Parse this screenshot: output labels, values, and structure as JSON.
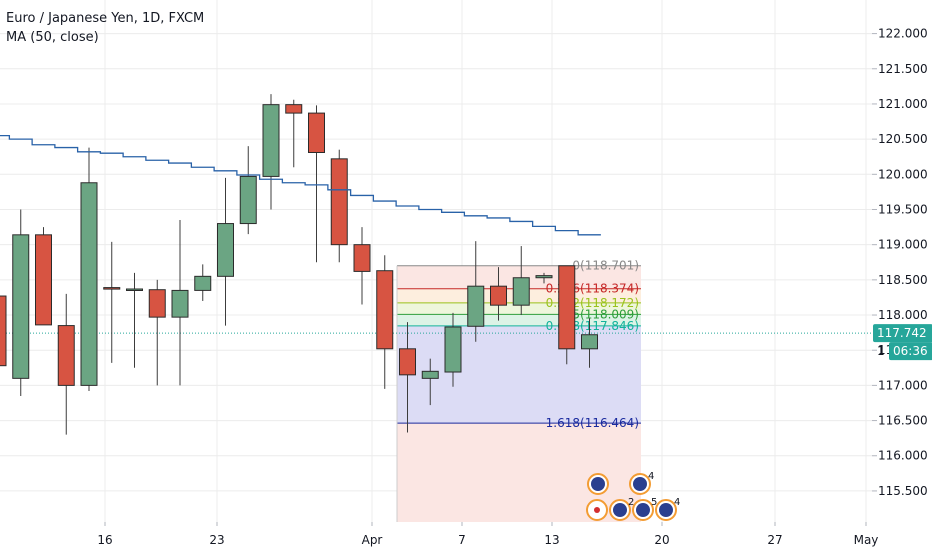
{
  "legend": {
    "title": "Euro / Japanese Yen, 1D, FXCM",
    "indicator": "MA (50, close)"
  },
  "price_badge": {
    "value": "117.742",
    "timer": "06:36",
    "timer_prefix": "1",
    "color": "#26a69a"
  },
  "colors": {
    "up": "#6ba583",
    "down": "#d75442",
    "ma": "#2962a8",
    "grid": "#ececec",
    "fib_upper_fill": "#fbe6e3",
    "fib_lower_fill": "#dcdcf5"
  },
  "chart_data": {
    "type": "candlestick",
    "title": "Euro / Japanese Yen, 1D, FXCM",
    "x_ticks": [
      "16",
      "23",
      "Apr",
      "7",
      "13",
      "20",
      "27",
      "May"
    ],
    "y_ticks": [
      "122.000",
      "121.500",
      "121.000",
      "120.500",
      "120.000",
      "119.500",
      "119.000",
      "118.500",
      "118.000",
      "117.500",
      "117.000",
      "116.500",
      "116.000",
      "115.500"
    ],
    "ylim": [
      115.3,
      122.25
    ],
    "grid": true,
    "candles": [
      {
        "o": 118.27,
        "h": 118.35,
        "l": 117.1,
        "c": 117.28
      },
      {
        "o": 117.1,
        "h": 119.5,
        "l": 116.85,
        "c": 119.14
      },
      {
        "o": 119.14,
        "h": 119.25,
        "l": 117.9,
        "c": 117.86
      },
      {
        "o": 117.85,
        "h": 118.3,
        "l": 116.3,
        "c": 117.0
      },
      {
        "o": 117.0,
        "h": 120.38,
        "l": 116.92,
        "c": 119.88
      },
      {
        "o": 118.39,
        "h": 119.04,
        "l": 117.32,
        "c": 118.37
      },
      {
        "o": 118.37,
        "h": 118.6,
        "l": 117.25,
        "c": 118.37
      },
      {
        "o": 118.36,
        "h": 118.5,
        "l": 117.0,
        "c": 117.97
      },
      {
        "o": 117.97,
        "h": 119.35,
        "l": 117.0,
        "c": 118.35
      },
      {
        "o": 118.35,
        "h": 118.72,
        "l": 118.2,
        "c": 118.55
      },
      {
        "o": 118.55,
        "h": 119.95,
        "l": 117.85,
        "c": 119.3
      },
      {
        "o": 119.3,
        "h": 120.4,
        "l": 119.15,
        "c": 119.97
      },
      {
        "o": 119.97,
        "h": 121.14,
        "l": 119.5,
        "c": 120.99
      },
      {
        "o": 120.99,
        "h": 121.06,
        "l": 120.1,
        "c": 120.87
      },
      {
        "o": 120.87,
        "h": 120.98,
        "l": 118.75,
        "c": 120.31
      },
      {
        "o": 120.22,
        "h": 120.35,
        "l": 118.75,
        "c": 119.0
      },
      {
        "o": 119.0,
        "h": 119.25,
        "l": 118.15,
        "c": 118.62
      },
      {
        "o": 118.63,
        "h": 118.85,
        "l": 116.95,
        "c": 117.52
      },
      {
        "o": 117.52,
        "h": 117.9,
        "l": 116.33,
        "c": 117.15
      },
      {
        "o": 117.1,
        "h": 117.38,
        "l": 116.72,
        "c": 117.2
      },
      {
        "o": 117.19,
        "h": 118.03,
        "l": 116.98,
        "c": 117.83
      },
      {
        "o": 117.84,
        "h": 119.05,
        "l": 117.62,
        "c": 118.41
      },
      {
        "o": 118.41,
        "h": 118.68,
        "l": 117.92,
        "c": 118.14
      },
      {
        "o": 118.14,
        "h": 118.98,
        "l": 118.0,
        "c": 118.53
      },
      {
        "o": 118.53,
        "h": 118.6,
        "l": 118.45,
        "c": 118.56
      },
      {
        "o": 118.7,
        "h": 118.7,
        "l": 117.3,
        "c": 117.52
      },
      {
        "o": 117.52,
        "h": 117.95,
        "l": 117.25,
        "c": 117.72
      }
    ],
    "ma_50": [
      120.55,
      120.5,
      120.42,
      120.38,
      120.32,
      120.3,
      120.25,
      120.2,
      120.16,
      120.1,
      120.05,
      119.99,
      119.93,
      119.88,
      119.85,
      119.78,
      119.7,
      119.62,
      119.55,
      119.5,
      119.46,
      119.41,
      119.38,
      119.33,
      119.26,
      119.2,
      119.14
    ],
    "fibonacci": {
      "levels": [
        {
          "ratio": "0",
          "price": "118.701",
          "label": "0(118.701)",
          "color": "#888888"
        },
        {
          "ratio": "0.236",
          "price": "118.374",
          "label": "0.236(118.374)",
          "color": "#c62828"
        },
        {
          "ratio": "0.382",
          "price": "118.172",
          "label": "0.382(118.172)",
          "color": "#9ac21c"
        },
        {
          "ratio": "0.5",
          "price": "118.009",
          "label": "0.5(118.009)",
          "color": "#2e9e3a"
        },
        {
          "ratio": "0.618",
          "price": "117.846",
          "label": "0.618(117.846)",
          "color": "#12b39b"
        },
        {
          "ratio": "1.618",
          "price": "116.464",
          "label": "1.618(116.464)",
          "color": "#1a2a9e"
        }
      ]
    },
    "current_price": 117.742,
    "event_badges": [
      "4",
      "2",
      "5",
      "4"
    ]
  }
}
